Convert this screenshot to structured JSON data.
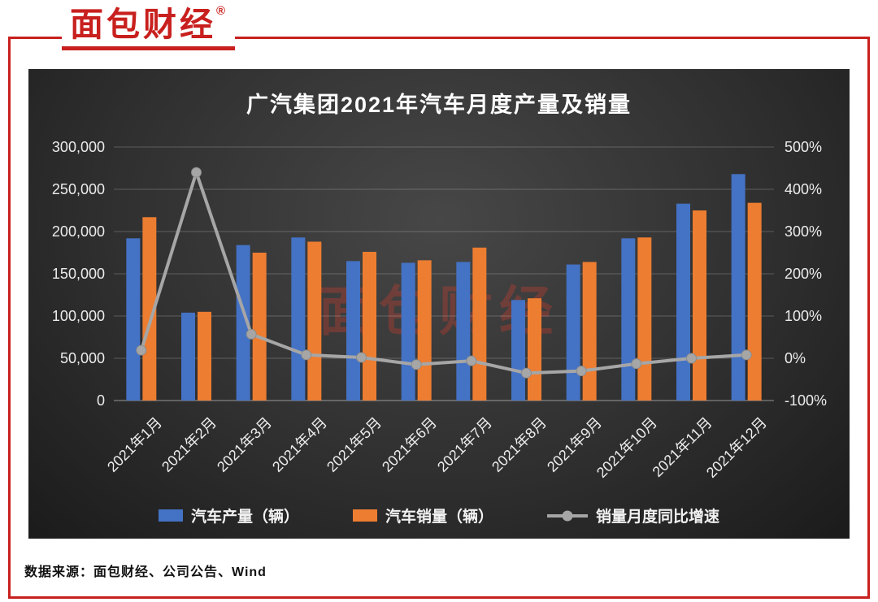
{
  "logo": {
    "text": "面包财经",
    "reg": "®"
  },
  "watermark_text": "面包财经",
  "source_text": "数据来源：面包财经、公司公告、Wind",
  "colors": {
    "accent_red": "#C8201E",
    "bar_production": "#4472C4",
    "bar_sales": "#ED7D31",
    "growth_line": "#A6A6A6",
    "panel_background": "#2E2E2E",
    "panel_text": "#ECECEC"
  },
  "chart_data": {
    "type": "combo",
    "title": "广汽集团2021年汽车月度产量及销量",
    "background": "dark",
    "grid": true,
    "legend_position": "bottom",
    "categories": [
      "2021年1月",
      "2021年2月",
      "2021年3月",
      "2021年4月",
      "2021年5月",
      "2021年6月",
      "2021年7月",
      "2021年8月",
      "2021年9月",
      "2021年10月",
      "2021年11月",
      "2021年12月"
    ],
    "series": [
      {
        "name": "汽车产量（辆）",
        "type": "bar",
        "axis": "left",
        "color": "#4472C4",
        "values": [
          192000,
          104000,
          184000,
          193000,
          165000,
          163000,
          164000,
          119000,
          161000,
          192000,
          233000,
          268000
        ]
      },
      {
        "name": "汽车销量（辆）",
        "type": "bar",
        "axis": "left",
        "color": "#ED7D31",
        "values": [
          217000,
          105000,
          175000,
          188000,
          176000,
          166000,
          181000,
          121000,
          164000,
          193000,
          225000,
          234000
        ]
      },
      {
        "name": "销量月度同比增速",
        "type": "line",
        "axis": "right",
        "color": "#A6A6A6",
        "values": [
          19,
          440,
          57,
          8,
          2,
          -15,
          -6,
          -35,
          -30,
          -13,
          0,
          8
        ]
      }
    ],
    "left_axis": {
      "min": 0,
      "max": 300000,
      "step": 50000,
      "ticks": [
        "300,000",
        "250,000",
        "200,000",
        "150,000",
        "100,000",
        "50,000",
        "0"
      ]
    },
    "right_axis": {
      "min": -100,
      "max": 500,
      "step": 100,
      "ticks": [
        "500%",
        "400%",
        "300%",
        "200%",
        "100%",
        "0%",
        "-100%"
      ]
    }
  }
}
